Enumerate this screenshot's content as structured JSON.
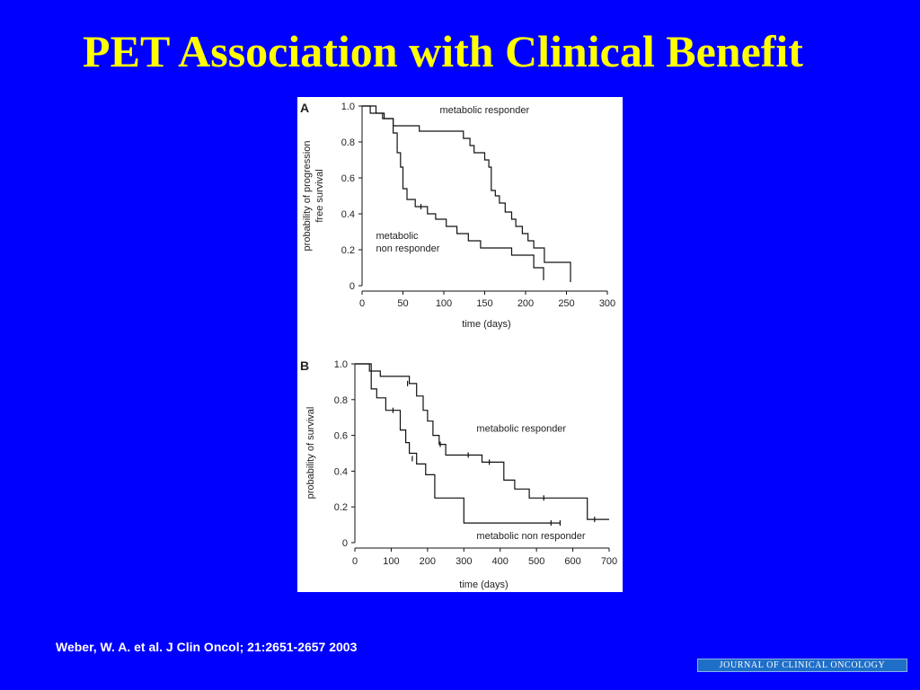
{
  "slide": {
    "title": "PET Association with Clinical Benefit",
    "citation": "Weber, W. A. et al. J Clin Oncol; 21:2651-2657 2003",
    "journal_logo": "JOURNAL OF CLINICAL ONCOLOGY",
    "colors": {
      "background": "#0000ff",
      "title": "#ffff00",
      "citation": "#ffffff",
      "curve": "#111111"
    }
  },
  "chart_data": [
    {
      "panel": "A",
      "type": "line",
      "step": true,
      "ylabel": [
        "probability of progression",
        "free survival"
      ],
      "xlabel": "time (days)",
      "xlim": [
        0,
        300
      ],
      "ylim": [
        0,
        1.0
      ],
      "xticks": [
        "0",
        "50",
        "100",
        "150",
        "200",
        "250",
        "300"
      ],
      "yticks": [
        "0",
        "0.2",
        "0.4",
        "0.6",
        "0.8",
        "1.0"
      ],
      "annotations": [
        {
          "lines": [
            "metabolic responder"
          ],
          "x": 95,
          "y": 0.96
        },
        {
          "lines": [
            "metabolic",
            "non responder"
          ],
          "x": 17,
          "y": 0.26
        }
      ],
      "series": [
        {
          "points": [
            [
              0,
              1.0
            ],
            [
              17,
              1.0
            ],
            [
              17,
              0.96
            ],
            [
              27,
              0.96
            ],
            [
              27,
              0.93
            ],
            [
              38,
              0.93
            ],
            [
              38,
              0.89
            ],
            [
              70,
              0.89
            ],
            [
              70,
              0.86
            ],
            [
              124,
              0.86
            ],
            [
              124,
              0.82
            ],
            [
              132,
              0.82
            ],
            [
              132,
              0.78
            ],
            [
              137,
              0.78
            ],
            [
              137,
              0.74
            ],
            [
              150,
              0.74
            ],
            [
              150,
              0.7
            ],
            [
              155,
              0.7
            ],
            [
              155,
              0.66
            ],
            [
              158,
              0.66
            ],
            [
              158,
              0.53
            ],
            [
              163,
              0.53
            ],
            [
              163,
              0.5
            ],
            [
              168,
              0.5
            ],
            [
              168,
              0.46
            ],
            [
              175,
              0.46
            ],
            [
              175,
              0.41
            ],
            [
              183,
              0.41
            ],
            [
              183,
              0.37
            ],
            [
              188,
              0.37
            ],
            [
              188,
              0.33
            ],
            [
              196,
              0.33
            ],
            [
              196,
              0.29
            ],
            [
              203,
              0.29
            ],
            [
              203,
              0.25
            ],
            [
              210,
              0.25
            ],
            [
              210,
              0.21
            ],
            [
              223,
              0.21
            ],
            [
              223,
              0.13
            ],
            [
              255,
              0.13
            ],
            [
              255,
              0.02
            ]
          ],
          "censored": []
        },
        {
          "points": [
            [
              0,
              1.0
            ],
            [
              10,
              1.0
            ],
            [
              10,
              0.96
            ],
            [
              25,
              0.96
            ],
            [
              25,
              0.93
            ],
            [
              38,
              0.93
            ],
            [
              38,
              0.85
            ],
            [
              43,
              0.85
            ],
            [
              43,
              0.74
            ],
            [
              47,
              0.74
            ],
            [
              47,
              0.66
            ],
            [
              50,
              0.66
            ],
            [
              50,
              0.54
            ],
            [
              55,
              0.54
            ],
            [
              55,
              0.48
            ],
            [
              65,
              0.48
            ],
            [
              65,
              0.44
            ],
            [
              80,
              0.44
            ],
            [
              80,
              0.4
            ],
            [
              90,
              0.4
            ],
            [
              90,
              0.37
            ],
            [
              103,
              0.37
            ],
            [
              103,
              0.33
            ],
            [
              116,
              0.33
            ],
            [
              116,
              0.29
            ],
            [
              130,
              0.29
            ],
            [
              130,
              0.25
            ],
            [
              145,
              0.25
            ],
            [
              145,
              0.21
            ],
            [
              183,
              0.21
            ],
            [
              183,
              0.17
            ],
            [
              210,
              0.17
            ],
            [
              210,
              0.1
            ],
            [
              222,
              0.1
            ],
            [
              222,
              0.03
            ]
          ],
          "censored": [
            [
              72,
              0.44
            ]
          ]
        }
      ]
    },
    {
      "panel": "B",
      "type": "line",
      "step": true,
      "ylabel": [
        "probability of survival"
      ],
      "xlabel": "time (days)",
      "xlim": [
        0,
        700
      ],
      "ylim": [
        0,
        1.0
      ],
      "xticks": [
        "0",
        "100",
        "200",
        "300",
        "400",
        "500",
        "600",
        "700"
      ],
      "yticks": [
        "0",
        "0.2",
        "0.4",
        "0.6",
        "0.8",
        "1.0"
      ],
      "annotations": [
        {
          "lines": [
            "metabolic responder"
          ],
          "x": 335,
          "y": 0.62
        },
        {
          "lines": [
            "metabolic non responder"
          ],
          "x": 335,
          "y": 0.02
        }
      ],
      "series": [
        {
          "points": [
            [
              0,
              1.0
            ],
            [
              40,
              1.0
            ],
            [
              40,
              0.96
            ],
            [
              70,
              0.96
            ],
            [
              70,
              0.93
            ],
            [
              150,
              0.93
            ],
            [
              150,
              0.89
            ],
            [
              170,
              0.89
            ],
            [
              170,
              0.82
            ],
            [
              188,
              0.82
            ],
            [
              188,
              0.74
            ],
            [
              200,
              0.74
            ],
            [
              200,
              0.68
            ],
            [
              215,
              0.68
            ],
            [
              215,
              0.6
            ],
            [
              232,
              0.6
            ],
            [
              232,
              0.55
            ],
            [
              250,
              0.55
            ],
            [
              250,
              0.49
            ],
            [
              350,
              0.49
            ],
            [
              350,
              0.45
            ],
            [
              410,
              0.45
            ],
            [
              410,
              0.35
            ],
            [
              440,
              0.35
            ],
            [
              440,
              0.3
            ],
            [
              480,
              0.3
            ],
            [
              480,
              0.25
            ],
            [
              640,
              0.25
            ],
            [
              640,
              0.13
            ],
            [
              700,
              0.13
            ]
          ],
          "censored": [
            [
              145,
              0.89
            ],
            [
              235,
              0.55
            ],
            [
              312,
              0.49
            ],
            [
              370,
              0.45
            ],
            [
              520,
              0.25
            ],
            [
              660,
              0.13
            ]
          ]
        },
        {
          "points": [
            [
              0,
              1.0
            ],
            [
              45,
              1.0
            ],
            [
              45,
              0.86
            ],
            [
              60,
              0.86
            ],
            [
              60,
              0.81
            ],
            [
              85,
              0.81
            ],
            [
              85,
              0.74
            ],
            [
              125,
              0.74
            ],
            [
              125,
              0.63
            ],
            [
              140,
              0.63
            ],
            [
              140,
              0.56
            ],
            [
              150,
              0.56
            ],
            [
              150,
              0.5
            ],
            [
              170,
              0.5
            ],
            [
              170,
              0.44
            ],
            [
              195,
              0.44
            ],
            [
              195,
              0.38
            ],
            [
              220,
              0.38
            ],
            [
              220,
              0.25
            ],
            [
              300,
              0.25
            ],
            [
              300,
              0.11
            ],
            [
              565,
              0.11
            ]
          ],
          "censored": [
            [
              105,
              0.74
            ],
            [
              158,
              0.47
            ],
            [
              540,
              0.11
            ],
            [
              565,
              0.11
            ]
          ]
        }
      ]
    }
  ]
}
